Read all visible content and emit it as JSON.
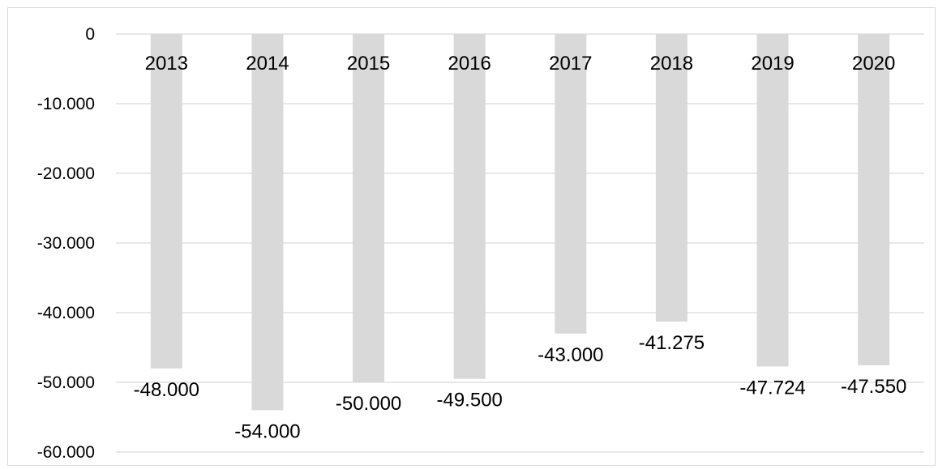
{
  "chart_data": {
    "type": "bar",
    "categories": [
      "2013",
      "2014",
      "2015",
      "2016",
      "2017",
      "2018",
      "2019",
      "2020"
    ],
    "values": [
      -48000,
      -54000,
      -50000,
      -49500,
      -43000,
      -41275,
      -47724,
      -47550
    ],
    "value_labels": [
      "-48.000",
      "-54.000",
      "-50.000",
      "-49.500",
      "-43.000",
      "-41.275",
      "-47.724",
      "-47.550"
    ],
    "y_ticks": [
      0,
      -10000,
      -20000,
      -30000,
      -40000,
      -50000,
      -60000
    ],
    "y_tick_labels": [
      "0",
      "-10.000",
      "-20.000",
      "-30.000",
      "-40.000",
      "-50.000",
      "-60.000"
    ],
    "ylim": [
      -60000,
      0
    ],
    "grid": true,
    "legend": "none",
    "title": "",
    "xlabel": "",
    "ylabel": ""
  },
  "colors": {
    "bar": "#d9d9d9",
    "grid": "#d9d9d9",
    "frame": "#d9d9d9",
    "text": "#000000"
  }
}
